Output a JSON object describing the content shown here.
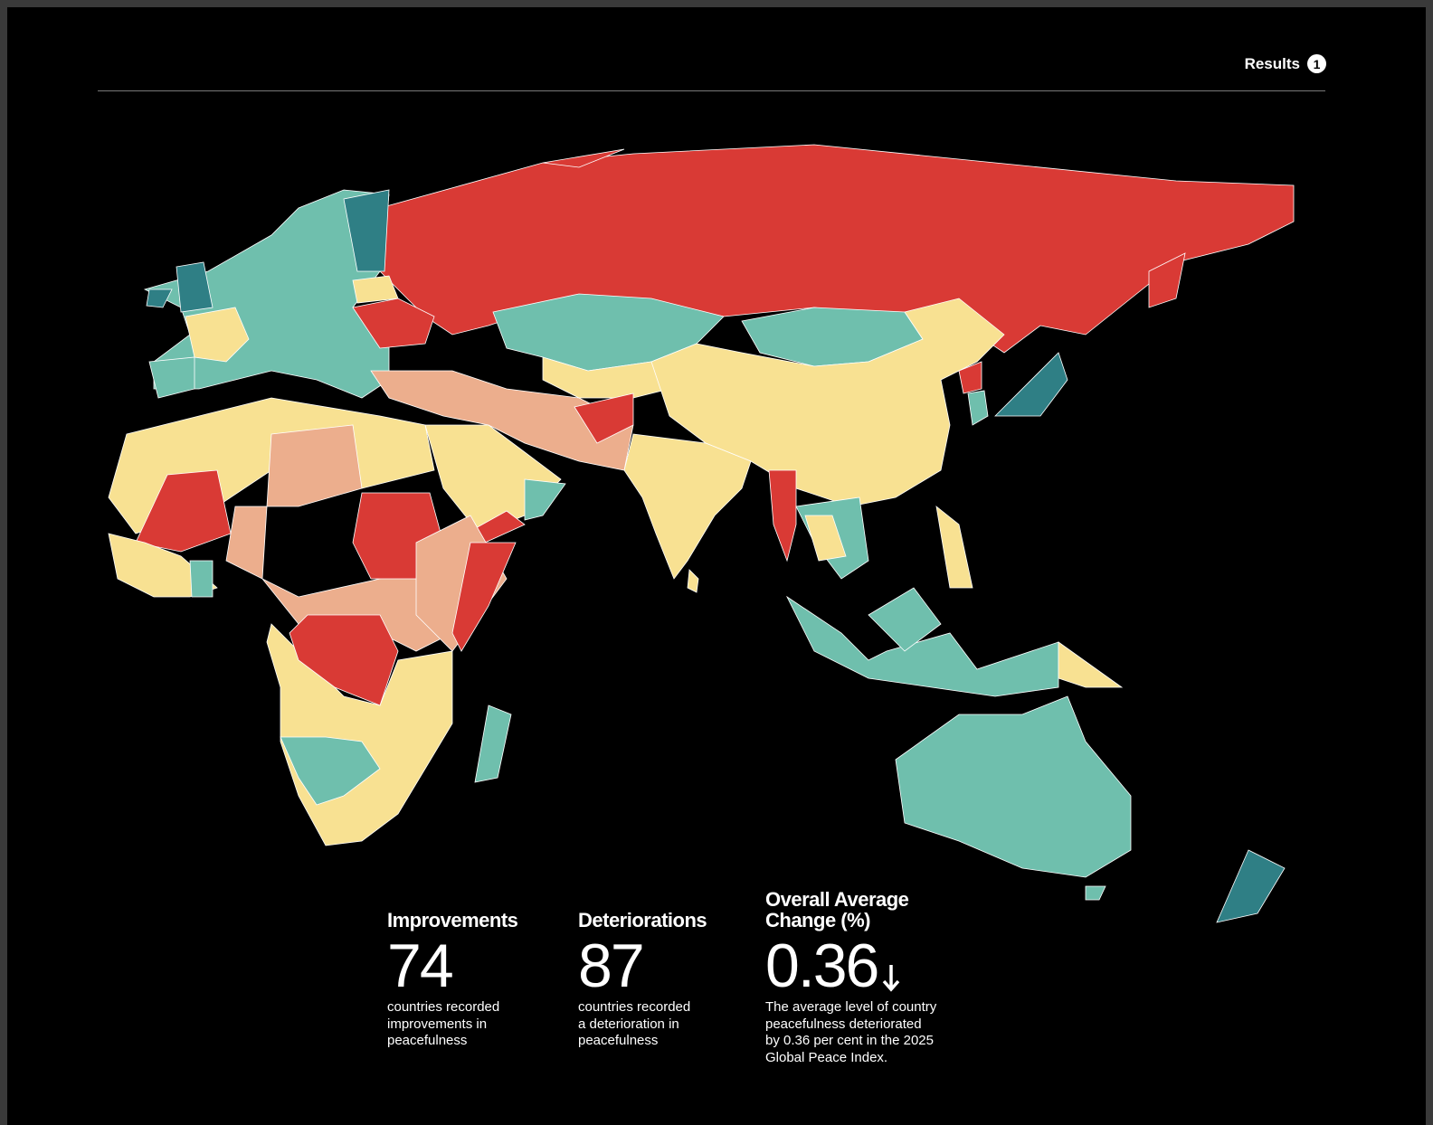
{
  "header": {
    "title": "Results",
    "badge": "1"
  },
  "stats": [
    {
      "title": "Improvements",
      "value": 74,
      "description": [
        "countries recorded",
        "improvements in",
        "peacefulness"
      ]
    },
    {
      "title": "Deteriorations",
      "value": 87,
      "description": [
        "countries recorded",
        "a deterioration in",
        "peacefulness"
      ]
    },
    {
      "title": "Overall Average Change (%)",
      "value": 0.36,
      "description": [
        "The average level of country",
        "peacefulness deteriorated",
        "by 0.36 per cent in the 2025",
        "Global Peace Index."
      ]
    }
  ]
}
